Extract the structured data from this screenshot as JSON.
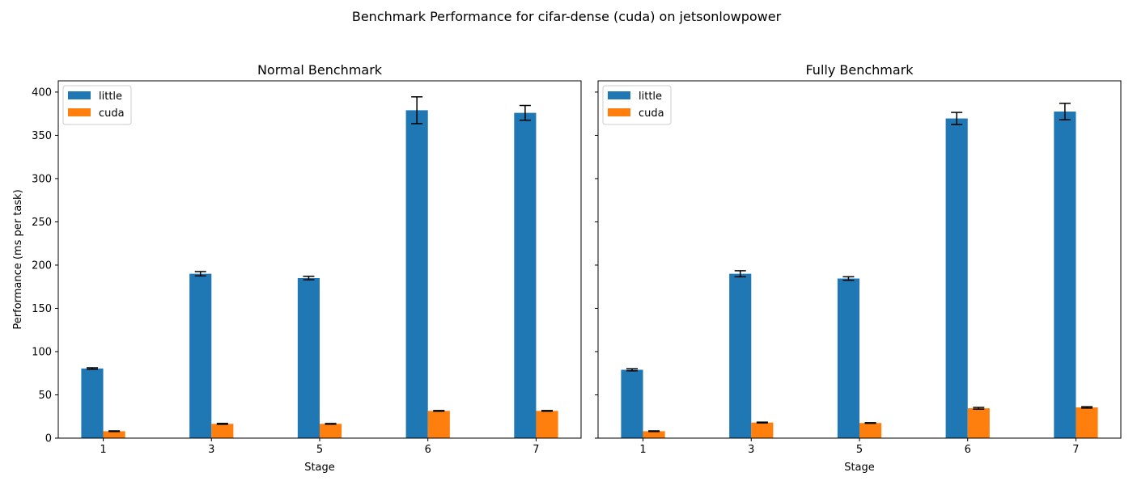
{
  "figure": {
    "title": "Benchmark Performance for cifar-dense (cuda) on jetsonlowpower"
  },
  "chart_data": [
    {
      "type": "bar",
      "title": "Normal Benchmark",
      "xlabel": "Stage",
      "ylabel": "Performance (ms per task)",
      "ylim": [
        0,
        413
      ],
      "yticks": [
        0,
        50,
        100,
        150,
        200,
        250,
        300,
        350,
        400
      ],
      "categories": [
        "1",
        "3",
        "5",
        "6",
        "7"
      ],
      "legend": "top-left",
      "grid": false,
      "series": [
        {
          "name": "little",
          "color": "#1f77b4",
          "values": [
            80.5,
            190,
            185,
            379,
            376
          ],
          "errors": [
            0.8,
            2.5,
            2.0,
            15.5,
            8.5
          ]
        },
        {
          "name": "cuda",
          "color": "#ff7f0e",
          "values": [
            8,
            16.5,
            16.5,
            31.5,
            31.5
          ],
          "errors": [
            0.4,
            0.5,
            0.4,
            0.4,
            0.4
          ]
        }
      ]
    },
    {
      "type": "bar",
      "title": "Fully Benchmark",
      "xlabel": "Stage",
      "ylabel": "",
      "ylim": [
        0,
        413
      ],
      "yticks": [
        0,
        50,
        100,
        150,
        200,
        250,
        300,
        350,
        400
      ],
      "categories": [
        "1",
        "3",
        "5",
        "6",
        "7"
      ],
      "legend": "top-left",
      "grid": false,
      "series": [
        {
          "name": "little",
          "color": "#1f77b4",
          "values": [
            79,
            190,
            184.5,
            369.5,
            377.5
          ],
          "errors": [
            1.2,
            3.5,
            2.0,
            7.0,
            9.5
          ]
        },
        {
          "name": "cuda",
          "color": "#ff7f0e",
          "values": [
            8,
            18,
            17.5,
            34.5,
            35.5
          ],
          "errors": [
            0.4,
            0.5,
            0.4,
            1.0,
            0.8
          ]
        }
      ]
    }
  ]
}
